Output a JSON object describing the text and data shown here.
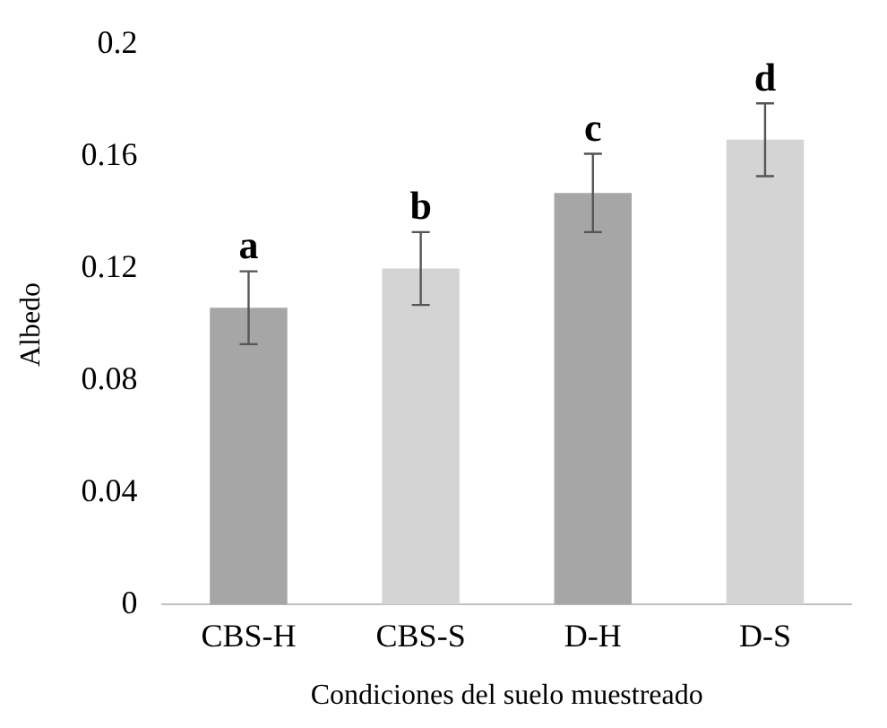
{
  "chart_data": {
    "type": "bar",
    "xlabel": "Condiciones del suelo muestreado",
    "ylabel": "Albedo",
    "categories": [
      "CBS-H",
      "CBS-S",
      "D-H",
      "D-S"
    ],
    "values": [
      0.106,
      0.12,
      0.147,
      0.166
    ],
    "errors": [
      0.013,
      0.013,
      0.014,
      0.013
    ],
    "colors": [
      "#a6a6a6",
      "#d4d4d4",
      "#a6a6a6",
      "#d4d4d4"
    ],
    "ylim": [
      0,
      0.2
    ],
    "yticks": [
      0,
      0.04,
      0.08,
      0.12,
      0.16,
      0.2
    ],
    "grid": false,
    "legend": false,
    "annotations": [
      "a",
      "b",
      "c",
      "d"
    ]
  }
}
